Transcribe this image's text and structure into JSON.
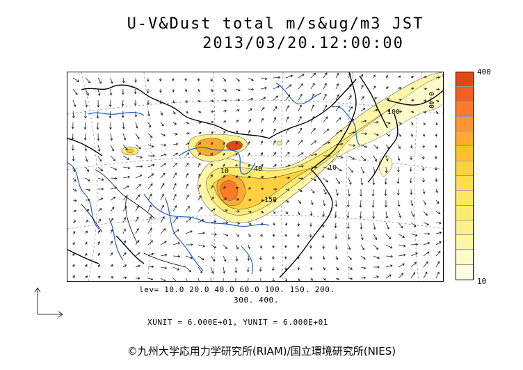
{
  "title": {
    "line1": "U-V&Dust  total  m/s&ug/m3 JST",
    "line2": "2013/03/20.12:00:00"
  },
  "colorbar": {
    "max_label": "400",
    "min_label": "10",
    "colors": [
      "#ffffe0",
      "#fffbc8",
      "#fff6a8",
      "#fff08c",
      "#ffeb70",
      "#ffe660",
      "#ffdc50",
      "#ffd040",
      "#ffc030",
      "#ffaa30",
      "#ff9430",
      "#ff7a28",
      "#f06020",
      "#e04818"
    ]
  },
  "contours": {
    "levels_line1": "lev= 10.0 20.0 40.0 60.0 100. 150. 200.",
    "levels_line2": "300. 400.",
    "labels": [
      "40",
      "10",
      "150",
      "10",
      "100",
      "0-40"
    ]
  },
  "units": {
    "text": "XUNIT = 6.000E+01, YUNIT = 6.000E+01"
  },
  "copyright": "©九州大学応用力学研究所(RIAM)/国立環境研究所(NIES)"
}
